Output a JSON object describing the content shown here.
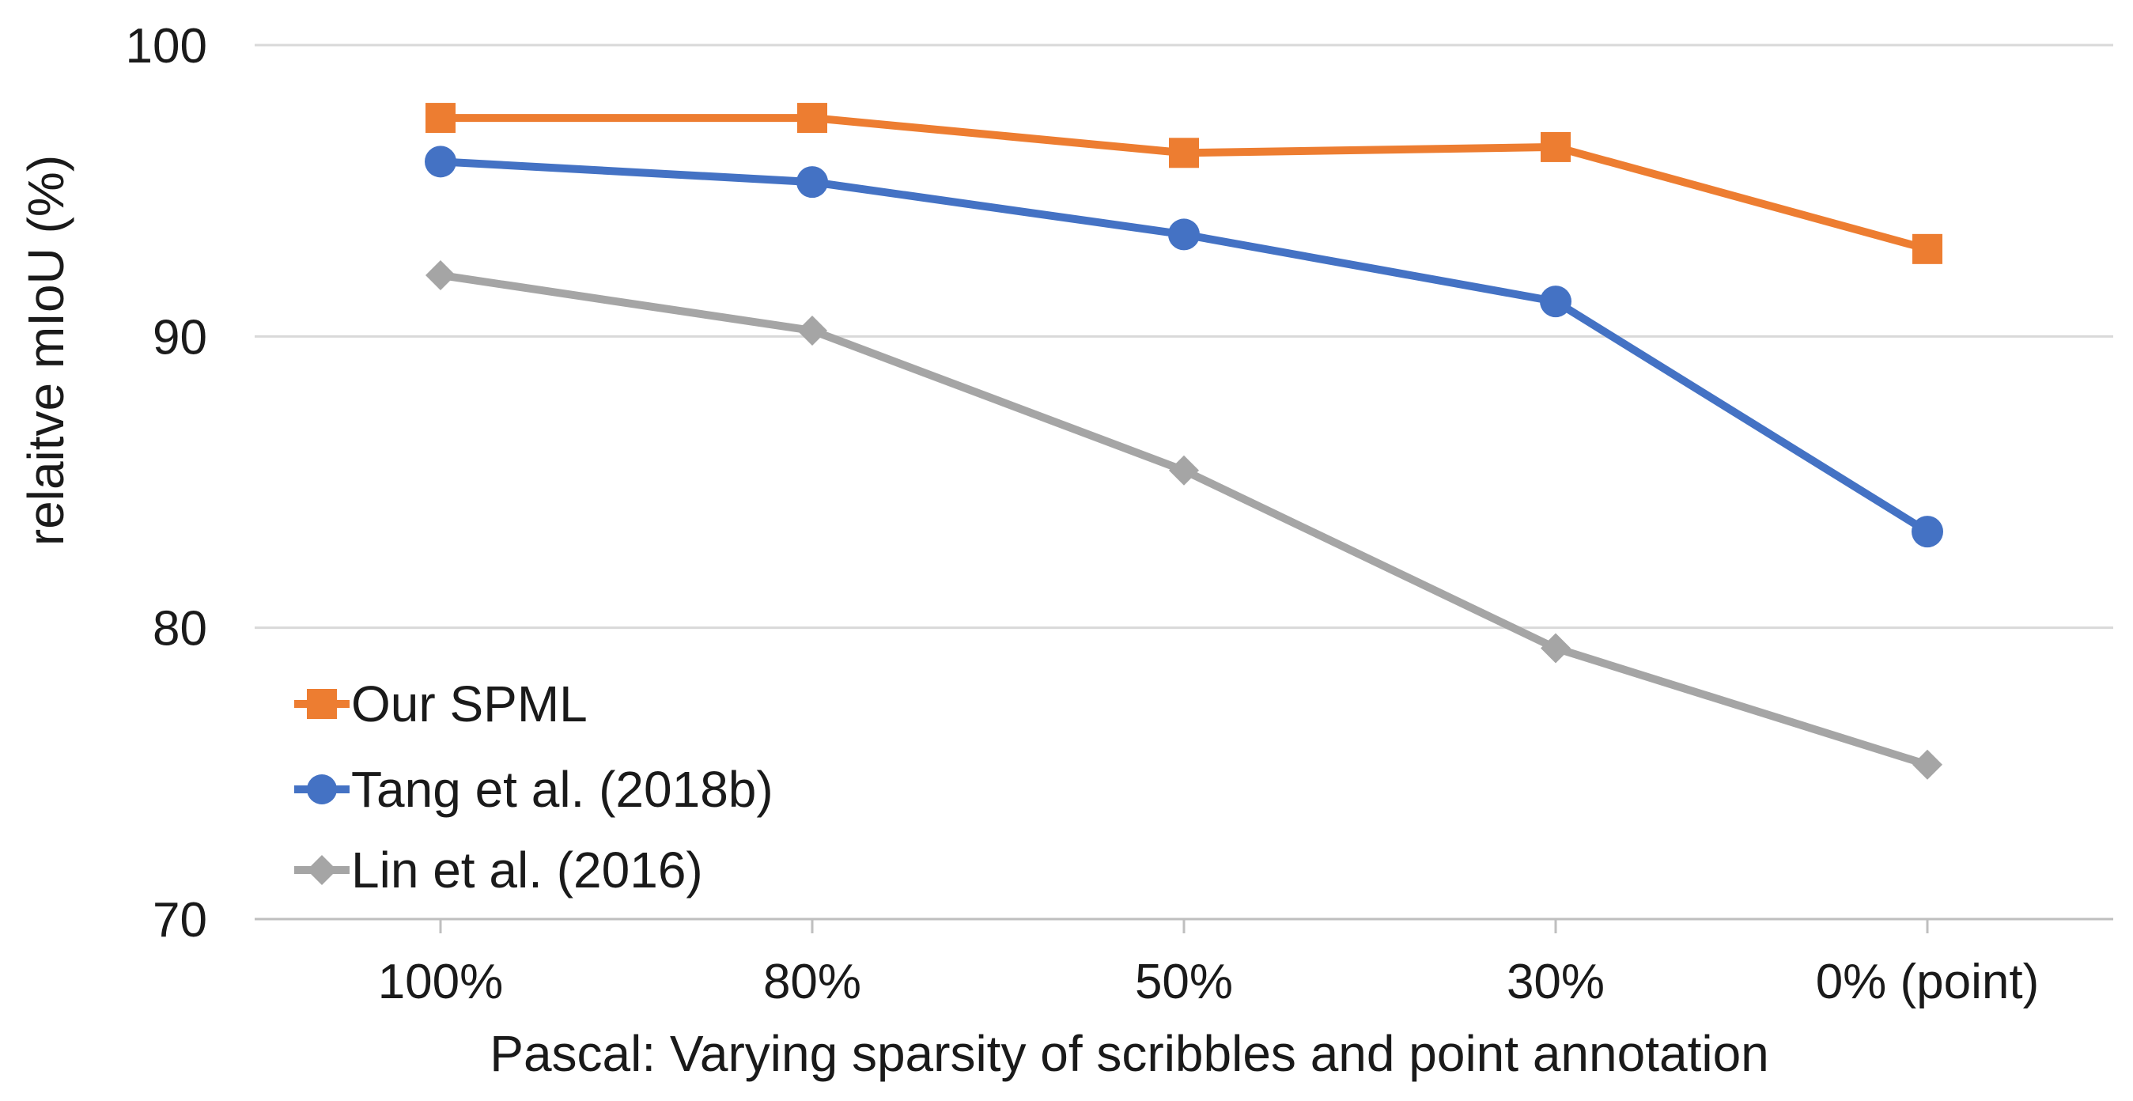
{
  "chart_data": {
    "type": "line",
    "title": "",
    "xlabel": "Pascal: Varying sparsity of scribbles and point annotation",
    "ylabel": "relaitve mIoU (%)",
    "categories": [
      "100%",
      "80%",
      "50%",
      "30%",
      "0% (point)"
    ],
    "ylim": [
      70,
      100
    ],
    "yticks": [
      70,
      80,
      90,
      100
    ],
    "grid": true,
    "legend_position": "bottom-left",
    "series": [
      {
        "name": "Our SPML",
        "values": [
          97.5,
          97.5,
          96.3,
          96.5,
          93.0
        ],
        "color": "#ED7D31",
        "marker": "square"
      },
      {
        "name": "Tang et al. (2018b)",
        "values": [
          96.0,
          95.3,
          93.5,
          91.2,
          83.3
        ],
        "color": "#4472C4",
        "marker": "circle"
      },
      {
        "name": "Lin et al. (2016)",
        "values": [
          92.1,
          90.2,
          85.4,
          79.3,
          75.3
        ],
        "color": "#A5A5A5",
        "marker": "diamond"
      }
    ]
  }
}
